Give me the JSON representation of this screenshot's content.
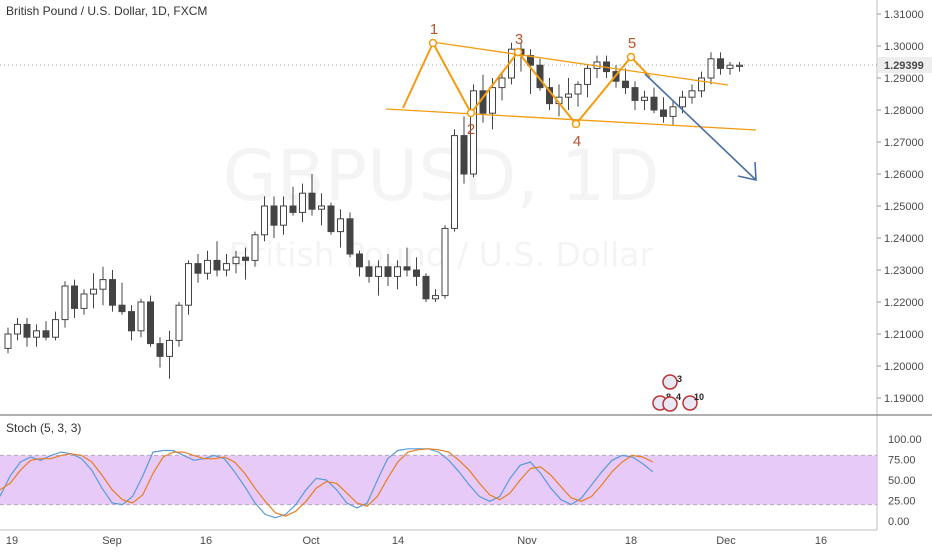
{
  "header": {
    "title": "British Pound / U.S. Dollar, 1D, FXCM",
    "watermark_symbol": "GBPUSD, 1D",
    "watermark_name": "British Pound / U.S. Dollar",
    "price_badge": "1.29399"
  },
  "indicator": {
    "label": "Stoch (5, 3, 3)"
  },
  "annotations": {
    "wave_labels": [
      "1",
      "2",
      "3",
      "4",
      "5"
    ],
    "event_badges": [
      "3",
      "8",
      "4",
      "10"
    ]
  },
  "colors": {
    "pattern": "#f39c12",
    "projection": "#4a6fa5",
    "wave_label": "#b5562b",
    "stoch_k": "#5b9bd5",
    "stoch_d": "#e67e22",
    "stoch_band": "#e0b8f5",
    "candle_border": "#444444",
    "bear_body": "#444444",
    "bull_body": "#ffffff"
  },
  "chart_data": [
    {
      "type": "candlestick",
      "title": "British Pound / U.S. Dollar, 1D, FXCM",
      "ylim": [
        1.185,
        1.313
      ],
      "y_ticks": [
        "1.31000",
        "1.30000",
        "1.29000",
        "1.28000",
        "1.27000",
        "1.26000",
        "1.25000",
        "1.24000",
        "1.23000",
        "1.22000",
        "1.21000",
        "1.20000",
        "1.19000"
      ],
      "x_tick_labels": [
        "19",
        "Sep",
        "16",
        "Oct",
        "14",
        "Nov",
        "18",
        "Dec",
        "16"
      ],
      "last_price": 1.29399,
      "ohlc": [
        [
          1.2055,
          1.212,
          1.204,
          1.21
        ],
        [
          1.21,
          1.215,
          1.208,
          1.213
        ],
        [
          1.213,
          1.215,
          1.206,
          1.209
        ],
        [
          1.209,
          1.213,
          1.206,
          1.211
        ],
        [
          1.211,
          1.214,
          1.208,
          1.209
        ],
        [
          1.209,
          1.217,
          1.208,
          1.2145
        ],
        [
          1.2145,
          1.2265,
          1.212,
          1.225
        ],
        [
          1.225,
          1.227,
          1.215,
          1.218
        ],
        [
          1.218,
          1.224,
          1.216,
          1.2225
        ],
        [
          1.2225,
          1.229,
          1.218,
          1.224
        ],
        [
          1.224,
          1.231,
          1.219,
          1.227
        ],
        [
          1.227,
          1.23,
          1.217,
          1.219
        ],
        [
          1.219,
          1.226,
          1.216,
          1.217
        ],
        [
          1.217,
          1.219,
          1.208,
          1.211
        ],
        [
          1.211,
          1.221,
          1.209,
          1.22
        ],
        [
          1.22,
          1.222,
          1.206,
          1.207
        ],
        [
          1.207,
          1.209,
          1.1995,
          1.203
        ],
        [
          1.203,
          1.211,
          1.196,
          1.208
        ],
        [
          1.208,
          1.22,
          1.206,
          1.219
        ],
        [
          1.219,
          1.233,
          1.216,
          1.232
        ],
        [
          1.232,
          1.235,
          1.226,
          1.229
        ],
        [
          1.229,
          1.236,
          1.227,
          1.233
        ],
        [
          1.233,
          1.239,
          1.228,
          1.23
        ],
        [
          1.23,
          1.235,
          1.228,
          1.232
        ],
        [
          1.232,
          1.236,
          1.229,
          1.234
        ],
        [
          1.234,
          1.237,
          1.227,
          1.233
        ],
        [
          1.233,
          1.242,
          1.231,
          1.241
        ],
        [
          1.241,
          1.253,
          1.239,
          1.25
        ],
        [
          1.25,
          1.253,
          1.24,
          1.244
        ],
        [
          1.244,
          1.253,
          1.241,
          1.25
        ],
        [
          1.25,
          1.256,
          1.247,
          1.248
        ],
        [
          1.248,
          1.257,
          1.245,
          1.254
        ],
        [
          1.254,
          1.26,
          1.247,
          1.249
        ],
        [
          1.249,
          1.254,
          1.244,
          1.25
        ],
        [
          1.25,
          1.251,
          1.241,
          1.242
        ],
        [
          1.242,
          1.249,
          1.237,
          1.246
        ],
        [
          1.246,
          1.248,
          1.234,
          1.235
        ],
        [
          1.235,
          1.236,
          1.228,
          1.231
        ],
        [
          1.231,
          1.233,
          1.226,
          1.228
        ],
        [
          1.228,
          1.233,
          1.222,
          1.231
        ],
        [
          1.231,
          1.235,
          1.225,
          1.228
        ],
        [
          1.228,
          1.233,
          1.224,
          1.231
        ],
        [
          1.231,
          1.237,
          1.228,
          1.23
        ],
        [
          1.23,
          1.234,
          1.225,
          1.228
        ],
        [
          1.228,
          1.229,
          1.22,
          1.221
        ],
        [
          1.221,
          1.224,
          1.22,
          1.222
        ],
        [
          1.222,
          1.244,
          1.221,
          1.243
        ],
        [
          1.243,
          1.274,
          1.242,
          1.272
        ],
        [
          1.272,
          1.278,
          1.257,
          1.26
        ],
        [
          1.26,
          1.288,
          1.259,
          1.286
        ],
        [
          1.286,
          1.291,
          1.276,
          1.279
        ],
        [
          1.279,
          1.29,
          1.274,
          1.287
        ],
        [
          1.287,
          1.292,
          1.283,
          1.29
        ],
        [
          1.29,
          1.301,
          1.288,
          1.299
        ],
        [
          1.299,
          1.301,
          1.292,
          1.297
        ],
        [
          1.297,
          1.299,
          1.285,
          1.294
        ],
        [
          1.294,
          1.296,
          1.286,
          1.287
        ],
        [
          1.287,
          1.29,
          1.28,
          1.282
        ],
        [
          1.282,
          1.288,
          1.278,
          1.284
        ],
        [
          1.284,
          1.29,
          1.28,
          1.285
        ],
        [
          1.285,
          1.289,
          1.281,
          1.288
        ],
        [
          1.288,
          1.294,
          1.284,
          1.293
        ],
        [
          1.293,
          1.297,
          1.29,
          1.295
        ],
        [
          1.295,
          1.297,
          1.29,
          1.292
        ],
        [
          1.292,
          1.294,
          1.287,
          1.289
        ],
        [
          1.289,
          1.293,
          1.285,
          1.287
        ],
        [
          1.287,
          1.289,
          1.28,
          1.283
        ],
        [
          1.283,
          1.286,
          1.28,
          1.284
        ],
        [
          1.284,
          1.287,
          1.279,
          1.28
        ],
        [
          1.28,
          1.284,
          1.276,
          1.278
        ],
        [
          1.278,
          1.283,
          1.275,
          1.281
        ],
        [
          1.281,
          1.286,
          1.279,
          1.284
        ],
        [
          1.284,
          1.288,
          1.282,
          1.286
        ],
        [
          1.286,
          1.292,
          1.284,
          1.29
        ],
        [
          1.29,
          1.298,
          1.288,
          1.296
        ],
        [
          1.296,
          1.298,
          1.291,
          1.293
        ],
        [
          1.293,
          1.295,
          1.291,
          1.294
        ],
        [
          1.294,
          1.295,
          1.292,
          1.294
        ]
      ]
    },
    {
      "type": "line",
      "title": "Stoch (5, 3, 3)",
      "ylim": [
        -5,
        100
      ],
      "y_ticks": [
        "100.00",
        "75.00",
        "50.00",
        "25.00",
        "0.00"
      ],
      "band": [
        20,
        80
      ],
      "series": [
        {
          "name": "%K",
          "values": [
            30,
            55,
            72,
            78,
            74,
            80,
            84,
            82,
            76,
            62,
            40,
            22,
            20,
            30,
            55,
            84,
            86,
            86,
            80,
            74,
            76,
            80,
            76,
            60,
            42,
            22,
            8,
            4,
            8,
            20,
            38,
            52,
            50,
            38,
            22,
            16,
            22,
            50,
            76,
            86,
            88,
            88,
            88,
            84,
            74,
            60,
            44,
            30,
            24,
            30,
            52,
            68,
            72,
            58,
            40,
            26,
            20,
            28,
            44,
            60,
            74,
            80,
            78,
            70,
            60
          ]
        },
        {
          "name": "%D",
          "values": [
            38,
            46,
            62,
            74,
            76,
            76,
            80,
            82,
            80,
            72,
            56,
            38,
            26,
            22,
            32,
            58,
            78,
            84,
            84,
            80,
            76,
            76,
            78,
            72,
            58,
            40,
            24,
            10,
            6,
            12,
            24,
            40,
            48,
            46,
            34,
            22,
            18,
            30,
            52,
            72,
            84,
            87,
            88,
            87,
            84,
            74,
            62,
            46,
            32,
            26,
            34,
            50,
            64,
            66,
            56,
            42,
            28,
            24,
            30,
            44,
            60,
            72,
            80,
            78,
            72
          ]
        }
      ]
    }
  ]
}
